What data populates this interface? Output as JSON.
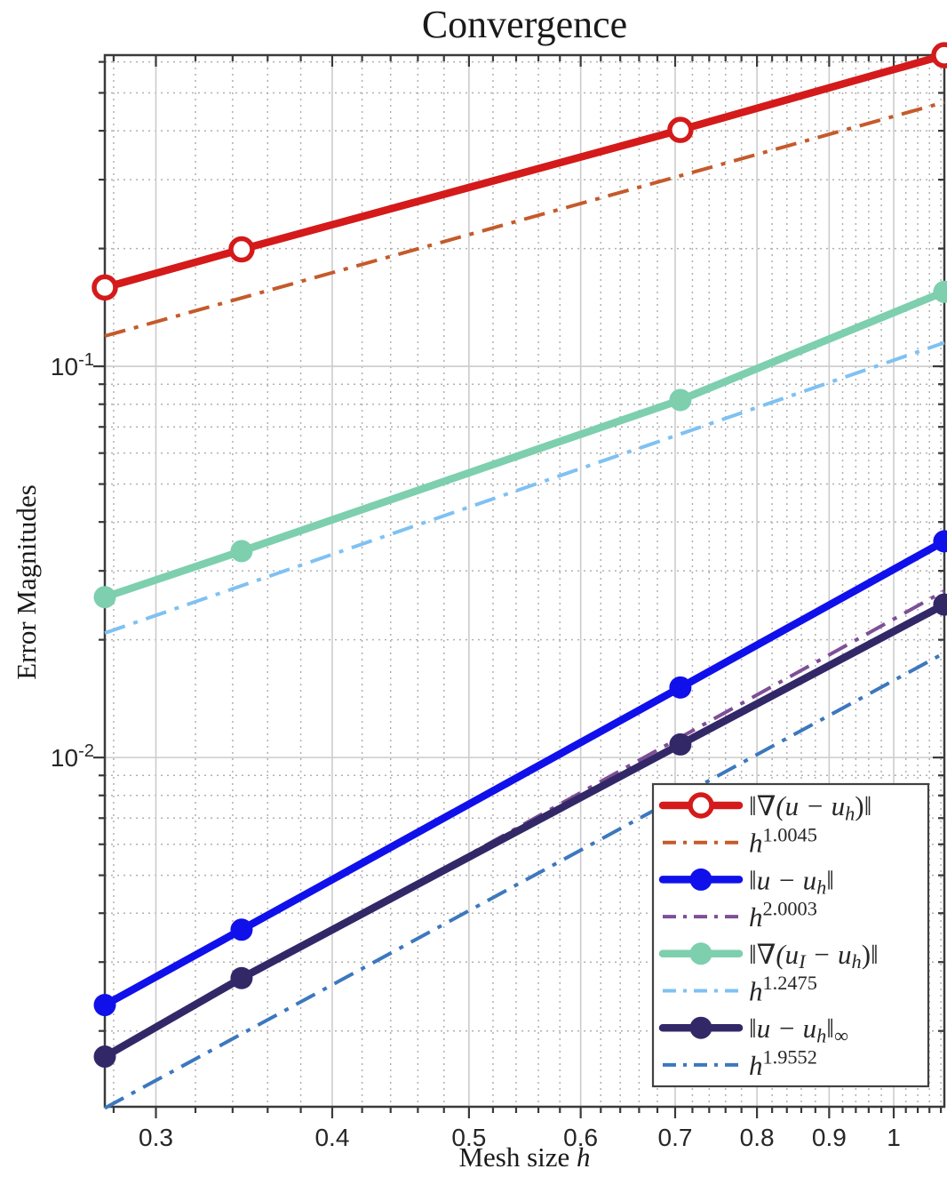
{
  "chart_data": {
    "type": "line",
    "scale": "log-log",
    "title": "Convergence",
    "xlabel": {
      "prefix": "Mesh size ",
      "variable": "h"
    },
    "ylabel": "Error Magnitudes",
    "x": [
      0.276,
      0.345,
      0.706,
      1.086
    ],
    "series": [
      {
        "id": "grad-error",
        "label": "‖∇(u − u_h)‖",
        "color": "#d41a1a",
        "marker": "open-circle",
        "line": "solid",
        "values": [
          0.159,
          0.199,
          0.402,
          0.624
        ]
      },
      {
        "id": "rate-grad",
        "label": "h^{1.0045}",
        "color": "#c55a2b",
        "marker": "none",
        "line": "dashdot",
        "is_reference": true,
        "slope": 1.0045,
        "value_at_xmin": 0.1195
      },
      {
        "id": "l2-error",
        "label": "‖u − u_h‖",
        "color": "#1010eb",
        "marker": "filled-circle",
        "line": "solid",
        "values": [
          0.00233,
          0.00363,
          0.0151,
          0.0357
        ]
      },
      {
        "id": "rate-l2",
        "label": "h^{2.0003}",
        "color": "#7e4f96",
        "marker": "none",
        "line": "dashdot",
        "is_reference": true,
        "slope": 2.0003,
        "value_at_xmin": 0.00172
      },
      {
        "id": "interp-grad-error",
        "label": "‖∇(u_I − u_h)‖",
        "color": "#7dcfae",
        "marker": "filled-circle",
        "line": "solid",
        "values": [
          0.0257,
          0.0337,
          0.082,
          0.155
        ]
      },
      {
        "id": "rate-interp",
        "label": "h^{1.2475}",
        "color": "#7fc1f2",
        "marker": "none",
        "line": "dashdot",
        "is_reference": true,
        "slope": 1.2475,
        "value_at_xmin": 0.0208
      },
      {
        "id": "max-error",
        "label": "‖u − u_h‖_∞",
        "color": "#322868",
        "marker": "filled-circle",
        "line": "solid",
        "values": [
          0.00172,
          0.00273,
          0.0108,
          0.0246
        ]
      },
      {
        "id": "rate-max",
        "label": "h^{1.9552}",
        "color": "#3c78be",
        "marker": "none",
        "line": "dashdot",
        "is_reference": true,
        "slope": 1.9552,
        "value_at_xmin": 0.00127
      }
    ],
    "axes": {
      "x": {
        "min": 0.276,
        "max": 1.0861,
        "major_ticks": [
          0.3,
          0.4,
          0.5,
          0.6,
          0.7,
          0.8,
          0.9,
          1
        ],
        "major_labels": [
          "0.3",
          "0.4",
          "0.5",
          "0.6",
          "0.7",
          "0.8",
          "0.9",
          "1"
        ],
        "minor_ticks": [
          0.28,
          0.32,
          0.34,
          0.36,
          0.38,
          0.42,
          0.44,
          0.46,
          0.48,
          0.52,
          0.54,
          0.56,
          0.58,
          0.62,
          0.64,
          0.66,
          0.68,
          0.72,
          0.74,
          0.76,
          0.78,
          0.82,
          0.84,
          0.86,
          0.88,
          0.92,
          0.94,
          0.96,
          0.98,
          1.02,
          1.04,
          1.06,
          1.08
        ]
      },
      "y": {
        "min": 0.00128,
        "max": 0.6244,
        "major_ticks": [
          0.01,
          0.1
        ],
        "major_labels": [
          "10^{-2}",
          "10^{-1}"
        ],
        "minor_ticks": [
          0.002,
          0.003,
          0.004,
          0.005,
          0.006,
          0.007,
          0.008,
          0.009,
          0.02,
          0.03,
          0.04,
          0.05,
          0.06,
          0.07,
          0.08,
          0.09,
          0.2,
          0.3,
          0.4,
          0.5,
          0.6
        ]
      }
    },
    "grid": {
      "major": true,
      "minor": true
    },
    "legend": {
      "position": "bottom-right",
      "order": [
        "grad-error",
        "rate-grad",
        "l2-error",
        "rate-l2",
        "interp-grad-error",
        "rate-interp",
        "max-error",
        "rate-max"
      ]
    }
  },
  "style": {
    "background": "#ffffff",
    "frame_color": "#3a3a3a",
    "major_grid_color": "#cccccc",
    "minor_grid_color": "#b0b0b0",
    "tick_label_color": "#262626",
    "text_color": "#1a1a1a",
    "legend_border_color": "#414141",
    "legend_background": "#ffffff"
  }
}
